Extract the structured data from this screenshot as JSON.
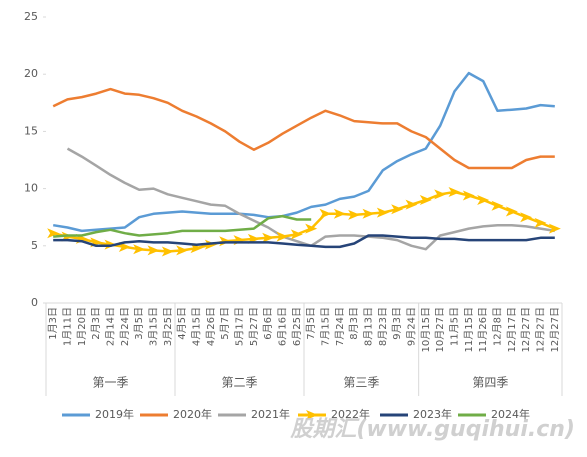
{
  "chart_data": {
    "type": "line",
    "categories": [
      "1月3日",
      "1月11日",
      "1月20日",
      "2月3日",
      "2月14日",
      "2月24日",
      "3月5日",
      "3月15日",
      "3月25日",
      "4月5日",
      "4月15日",
      "4月26日",
      "5月7日",
      "5月17日",
      "5月27日",
      "6月6日",
      "6月16日",
      "6月25日",
      "7月5日",
      "7月15日",
      "7月24日",
      "8月3日",
      "8月13日",
      "8月23日",
      "9月3日",
      "9月24日",
      "10月15日",
      "10月27日",
      "11月5日",
      "11月15日",
      "11月26日",
      "12月8日",
      "12月17日",
      "12月27日",
      "12月27日",
      "12月27日"
    ],
    "quarters": [
      {
        "name": "第一季",
        "count": 9
      },
      {
        "name": "第二季",
        "count": 9
      },
      {
        "name": "第三季",
        "count": 8
      },
      {
        "name": "第四季",
        "count": 10
      }
    ],
    "series": [
      {
        "name": "2019年",
        "color": "#5b9bd5",
        "values": [
          6.8,
          6.6,
          6.3,
          6.4,
          6.5,
          6.6,
          7.5,
          7.8,
          7.9,
          8.0,
          7.9,
          7.8,
          7.8,
          7.8,
          7.7,
          7.5,
          7.6,
          7.9,
          8.4,
          8.6,
          9.1,
          9.3,
          9.8,
          11.6,
          12.4,
          13.0,
          13.5,
          15.5,
          18.5,
          20.1,
          19.4,
          16.8,
          16.9,
          17.0,
          17.3,
          17.2
        ]
      },
      {
        "name": "2020年",
        "color": "#ed7d31",
        "values": [
          17.2,
          17.8,
          18.0,
          18.3,
          18.7,
          18.3,
          18.2,
          17.9,
          17.5,
          16.8,
          16.3,
          15.7,
          15.0,
          14.1,
          13.4,
          14.0,
          14.8,
          15.5,
          16.2,
          16.8,
          16.4,
          15.9,
          15.8,
          15.7,
          15.7,
          15.0,
          14.5,
          13.5,
          12.5,
          11.8,
          11.8,
          11.8,
          11.8,
          12.5,
          12.8,
          12.8
        ]
      },
      {
        "name": "2021年",
        "color": "#a5a5a5",
        "values": [
          null,
          13.5,
          12.8,
          12.0,
          11.2,
          10.5,
          9.9,
          10.0,
          9.5,
          9.2,
          8.9,
          8.6,
          8.5,
          7.8,
          7.2,
          6.6,
          5.8,
          5.4,
          5.0,
          5.8,
          5.9,
          5.9,
          5.8,
          5.7,
          5.5,
          5.0,
          4.7,
          5.9,
          6.2,
          6.5,
          6.7,
          6.8,
          6.8,
          6.7,
          6.5,
          6.3
        ]
      },
      {
        "name": "2022年",
        "color": "#ffc000",
        "marker": "arrow",
        "values": [
          6.1,
          5.8,
          5.6,
          5.3,
          5.1,
          4.9,
          4.7,
          4.6,
          4.5,
          4.6,
          4.8,
          5.1,
          5.4,
          5.5,
          5.6,
          5.7,
          5.8,
          6.0,
          6.5,
          7.8,
          7.8,
          7.7,
          7.8,
          7.9,
          8.2,
          8.6,
          9.0,
          9.5,
          9.7,
          9.4,
          9.0,
          8.5,
          8.0,
          7.5,
          7.0,
          6.5
        ]
      },
      {
        "name": "2023年",
        "color": "#264478",
        "values": [
          5.5,
          5.5,
          5.4,
          5.0,
          5.0,
          5.3,
          5.4,
          5.3,
          5.3,
          5.2,
          5.1,
          5.2,
          5.3,
          5.3,
          5.3,
          5.3,
          5.2,
          5.1,
          5.0,
          4.9,
          4.9,
          5.2,
          5.9,
          5.9,
          5.8,
          5.7,
          5.7,
          5.6,
          5.6,
          5.5,
          5.5,
          5.5,
          5.5,
          5.5,
          5.7,
          5.7
        ]
      },
      {
        "name": "2024年",
        "color": "#70ad47",
        "values": [
          5.8,
          5.9,
          5.9,
          6.2,
          6.4,
          6.1,
          5.9,
          6.0,
          6.1,
          6.3,
          6.3,
          6.3,
          6.3,
          6.4,
          6.5,
          7.4,
          7.6,
          7.3,
          7.3,
          null,
          null,
          null,
          null,
          null,
          null,
          null,
          null,
          null,
          null,
          null,
          null,
          null,
          null,
          null,
          null,
          null
        ]
      }
    ],
    "ylim": [
      0,
      25
    ],
    "yticks": [
      0,
      5,
      10,
      15,
      20,
      25
    ],
    "grid": false,
    "watermark": "股期汇(www.guqihui.cn)"
  }
}
